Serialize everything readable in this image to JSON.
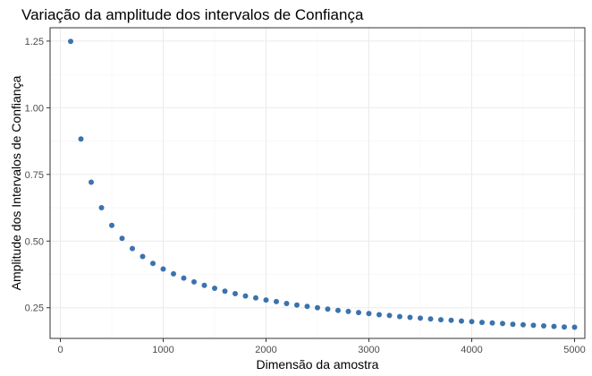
{
  "chart_data": {
    "type": "scatter",
    "title": "Variação da amplitude dos intervalos de Confiança",
    "xlabel": "Dimensão da amostra",
    "ylabel": "Amplitude dos Intervalos de Confiança",
    "xlim": [
      -100,
      5100
    ],
    "ylim": [
      0.135,
      1.3
    ],
    "xticks": [
      0,
      1000,
      2000,
      3000,
      4000,
      5000
    ],
    "xtick_labels": [
      "0",
      "1000",
      "2000",
      "3000",
      "4000",
      "5000"
    ],
    "yticks": [
      0.25,
      0.5,
      0.75,
      1.0,
      1.25
    ],
    "ytick_labels": [
      "0.25",
      "0.50",
      "0.75",
      "1.00",
      "1.25"
    ],
    "grid": true,
    "point_color": "#3a73ad",
    "series": [
      {
        "x": [
          100,
          200,
          300,
          400,
          500,
          600,
          700,
          800,
          900,
          1000,
          1100,
          1200,
          1300,
          1400,
          1500,
          1600,
          1700,
          1800,
          1900,
          2000,
          2100,
          2200,
          2300,
          2400,
          2500,
          2600,
          2700,
          2800,
          2900,
          3000,
          3100,
          3200,
          3300,
          3400,
          3500,
          3600,
          3700,
          3800,
          3900,
          4000,
          4100,
          4200,
          4300,
          4400,
          4500,
          4600,
          4700,
          4800,
          4900,
          5000
        ],
        "values": [
          1.249,
          0.883,
          0.721,
          0.625,
          0.559,
          0.51,
          0.472,
          0.442,
          0.416,
          0.395,
          0.377,
          0.361,
          0.347,
          0.334,
          0.323,
          0.312,
          0.303,
          0.294,
          0.287,
          0.279,
          0.273,
          0.266,
          0.26,
          0.255,
          0.25,
          0.245,
          0.24,
          0.236,
          0.232,
          0.228,
          0.224,
          0.221,
          0.217,
          0.214,
          0.211,
          0.208,
          0.205,
          0.203,
          0.2,
          0.198,
          0.195,
          0.193,
          0.191,
          0.188,
          0.186,
          0.184,
          0.182,
          0.18,
          0.178,
          0.177
        ]
      }
    ]
  }
}
